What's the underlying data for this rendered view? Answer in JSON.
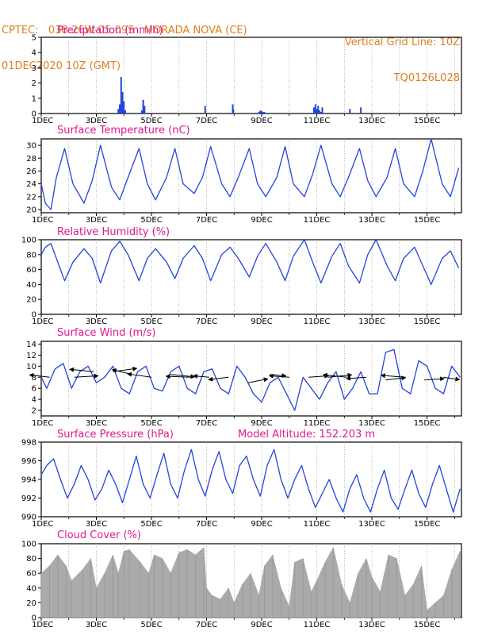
{
  "header": {
    "line1_left": "CPTEC:   038:26W-05:09S   MORADA NOVA (CE)",
    "line2_left": "01DEC2020 10Z (GMT)",
    "line1_right": "Vertical Grid Line: 10Z",
    "line2_right": "TQ0126L028"
  },
  "model_altitude": "Model Altitude: 152.203 m",
  "colors": {
    "series": "#2244dd",
    "cloud": "#aaaaaa",
    "title": "#e0198f",
    "header": "#e07f20"
  },
  "x_tick_labels": [
    "1DEC",
    "3DEC",
    "5DEC",
    "7DEC",
    "9DEC",
    "11DEC",
    "13DEC",
    "15DEC"
  ],
  "chart_data": [
    {
      "type": "bar",
      "title": "Precipitation (mm/h)",
      "x_unit": "days since 01DEC2020 10Z",
      "ylim": [
        0,
        5
      ],
      "yticks": [
        0,
        1,
        2,
        3,
        4,
        5
      ],
      "x": [
        2.8,
        2.85,
        2.9,
        2.95,
        3.0,
        3.05,
        3.65,
        3.7,
        3.75,
        5.95,
        6.95,
        6.97,
        7.9,
        7.95,
        8.0,
        8.05,
        8.1,
        9.9,
        9.95,
        10.0,
        10.05,
        10.1,
        10.15,
        10.2,
        11.2,
        11.6
      ],
      "values": [
        0.3,
        0.6,
        2.4,
        1.4,
        0.8,
        0.2,
        0.2,
        0.9,
        0.5,
        0.5,
        0.6,
        0.3,
        0.1,
        0.2,
        0.15,
        0.1,
        0.1,
        0.4,
        0.6,
        0.3,
        0.5,
        0.2,
        0.1,
        0.4,
        0.3,
        0.4
      ]
    },
    {
      "type": "line",
      "title": "Surface Temperature (nC)",
      "ylim": [
        19.5,
        31
      ],
      "yticks": [
        20,
        22,
        24,
        26,
        28,
        30
      ],
      "x": [
        0,
        0.15,
        0.35,
        0.55,
        0.85,
        1.15,
        1.55,
        1.85,
        2.15,
        2.55,
        2.85,
        3.15,
        3.55,
        3.85,
        4.15,
        4.55,
        4.85,
        5.15,
        5.55,
        5.85,
        6.15,
        6.55,
        6.85,
        7.15,
        7.55,
        7.85,
        8.15,
        8.55,
        8.85,
        9.15,
        9.55,
        9.85,
        10.15,
        10.55,
        10.85,
        11.15,
        11.55,
        11.85,
        12.15,
        12.55,
        12.85,
        13.15,
        13.55,
        13.85,
        14.15,
        14.55,
        14.85,
        15.15
      ],
      "values": [
        24,
        21,
        20,
        25,
        29.5,
        24,
        21,
        24.5,
        30,
        23.5,
        21.5,
        25,
        29.5,
        24,
        21.5,
        25,
        29.5,
        24,
        22.5,
        25,
        29.8,
        24,
        22,
        25,
        29.5,
        24,
        22,
        25,
        29.8,
        24,
        22,
        25.5,
        30,
        24,
        22,
        25,
        29.5,
        24.5,
        22,
        25,
        29.5,
        24,
        22,
        26,
        31,
        24,
        22,
        26.5
      ]
    },
    {
      "type": "line",
      "title": "Relative Humidity (%)",
      "ylim": [
        0,
        100
      ],
      "yticks": [
        0,
        20,
        40,
        60,
        80,
        100
      ],
      "x": [
        0,
        0.15,
        0.35,
        0.55,
        0.85,
        1.15,
        1.55,
        1.85,
        2.15,
        2.55,
        2.85,
        3.15,
        3.55,
        3.85,
        4.15,
        4.55,
        4.85,
        5.15,
        5.55,
        5.85,
        6.15,
        6.55,
        6.85,
        7.15,
        7.55,
        7.85,
        8.15,
        8.55,
        8.85,
        9.15,
        9.55,
        9.85,
        10.15,
        10.55,
        10.85,
        11.15,
        11.55,
        11.85,
        12.15,
        12.55,
        12.85,
        13.15,
        13.55,
        13.85,
        14.15,
        14.55,
        14.85,
        15.15
      ],
      "values": [
        80,
        90,
        95,
        75,
        45,
        70,
        88,
        75,
        42,
        85,
        98,
        80,
        45,
        75,
        88,
        70,
        48,
        75,
        92,
        75,
        45,
        80,
        90,
        75,
        50,
        78,
        95,
        70,
        45,
        78,
        100,
        70,
        42,
        78,
        95,
        65,
        42,
        80,
        100,
        65,
        45,
        75,
        90,
        65,
        40,
        75,
        85,
        62
      ]
    },
    {
      "type": "line",
      "title": "Surface Wind (m/s)",
      "ylim": [
        1,
        14.5
      ],
      "yticks": [
        2,
        4,
        6,
        8,
        10,
        12,
        14
      ],
      "x": [
        0,
        0.2,
        0.5,
        0.8,
        1.1,
        1.4,
        1.7,
        2.0,
        2.3,
        2.6,
        2.9,
        3.2,
        3.5,
        3.8,
        4.1,
        4.4,
        4.7,
        5.0,
        5.3,
        5.6,
        5.9,
        6.2,
        6.5,
        6.8,
        7.1,
        7.4,
        7.7,
        8.0,
        8.3,
        8.6,
        8.9,
        9.2,
        9.5,
        9.8,
        10.1,
        10.4,
        10.7,
        11.0,
        11.3,
        11.6,
        11.9,
        12.2,
        12.5,
        12.8,
        13.1,
        13.4,
        13.7,
        14.0,
        14.3,
        14.6,
        14.9,
        15.2
      ],
      "values": [
        8,
        6,
        9.5,
        10.5,
        6,
        9,
        10,
        7,
        8,
        10,
        6,
        5,
        9,
        10,
        6,
        5.5,
        9,
        10,
        6,
        5,
        9,
        9.5,
        6,
        5,
        10,
        8,
        5,
        3.5,
        7,
        8,
        5,
        2,
        8,
        6,
        4,
        7,
        9,
        4,
        6,
        9,
        5,
        5,
        12.5,
        13,
        6,
        5,
        11,
        10,
        6,
        5,
        10,
        8
      ]
    },
    {
      "type": "line",
      "title": "Surface Pressure (hPa)",
      "ylim": [
        990,
        998
      ],
      "yticks": [
        990,
        992,
        994,
        996,
        998
      ],
      "x": [
        0,
        0.2,
        0.45,
        0.7,
        0.95,
        1.2,
        1.45,
        1.7,
        1.95,
        2.2,
        2.45,
        2.7,
        2.95,
        3.2,
        3.45,
        3.7,
        3.95,
        4.2,
        4.45,
        4.7,
        4.95,
        5.2,
        5.45,
        5.7,
        5.95,
        6.2,
        6.45,
        6.7,
        6.95,
        7.2,
        7.45,
        7.7,
        7.95,
        8.2,
        8.45,
        8.7,
        8.95,
        9.2,
        9.45,
        9.7,
        9.95,
        10.2,
        10.45,
        10.7,
        10.95,
        11.2,
        11.45,
        11.7,
        11.95,
        12.2,
        12.45,
        12.7,
        12.95,
        13.2,
        13.45,
        13.7,
        13.95,
        14.2,
        14.45,
        14.7,
        14.95,
        15.2
      ],
      "values": [
        994.5,
        995.5,
        996.2,
        994,
        992,
        993.5,
        995.5,
        994,
        991.8,
        993,
        995,
        993.5,
        991.5,
        994,
        996.5,
        993.5,
        992,
        994.5,
        996.8,
        993.5,
        992,
        995,
        997.2,
        994,
        992.2,
        995,
        997,
        994,
        992.5,
        995.5,
        996.5,
        994,
        992.2,
        995.5,
        997.2,
        994,
        992,
        994,
        995.5,
        993,
        991,
        992.5,
        994,
        992,
        990.5,
        993,
        994.5,
        992,
        990.5,
        993,
        995,
        992,
        990.8,
        993,
        995,
        992.5,
        991,
        993.5,
        995.5,
        993,
        990.5,
        993
      ]
    },
    {
      "type": "area",
      "title": "Cloud Cover (%)",
      "ylim": [
        0,
        100
      ],
      "yticks": [
        0,
        20,
        40,
        60,
        80,
        100
      ],
      "x": [
        0,
        0.3,
        0.6,
        0.9,
        1.1,
        1.5,
        1.8,
        2.0,
        2.3,
        2.6,
        2.8,
        3.0,
        3.2,
        3.6,
        3.9,
        4.1,
        4.4,
        4.7,
        5.0,
        5.3,
        5.6,
        5.9,
        6.0,
        6.2,
        6.5,
        6.8,
        7.0,
        7.3,
        7.6,
        7.9,
        8.1,
        8.4,
        8.7,
        9.0,
        9.2,
        9.5,
        9.8,
        10.0,
        10.3,
        10.6,
        10.9,
        11.2,
        11.5,
        11.8,
        12.0,
        12.3,
        12.6,
        12.9,
        13.2,
        13.5,
        13.8,
        14.0,
        14.3,
        14.6,
        14.9,
        15.2
      ],
      "values": [
        60,
        70,
        85,
        70,
        50,
        65,
        80,
        40,
        60,
        85,
        60,
        90,
        92,
        75,
        60,
        85,
        80,
        60,
        88,
        92,
        85,
        95,
        40,
        30,
        25,
        40,
        20,
        45,
        60,
        30,
        70,
        85,
        40,
        15,
        75,
        80,
        35,
        50,
        75,
        95,
        45,
        20,
        60,
        80,
        55,
        35,
        85,
        80,
        30,
        45,
        70,
        10,
        20,
        30,
        65,
        90
      ]
    },
    {
      "type": "vectors",
      "title": "Surface Wind (m/s)",
      "x": [
        0.3,
        1.2,
        1.9,
        2.6,
        3.3,
        4.0,
        4.7,
        5.4,
        6.1,
        6.8,
        7.5,
        8.3,
        9.0,
        9.7,
        10.4,
        11.1,
        11.8,
        12.5,
        13.2,
        13.9,
        14.6
      ],
      "values": [
        8,
        8,
        9,
        9,
        8.5,
        8,
        8.5,
        8,
        8,
        8,
        7,
        8.5,
        8,
        8,
        8,
        8,
        8,
        7.5,
        8,
        7.5,
        8
      ],
      "u": [
        -2.5,
        3,
        -3,
        3,
        -2.5,
        -3,
        3,
        -3,
        -2,
        -2.5,
        2.5,
        2,
        -2.5,
        2.5,
        3,
        -3,
        -2.5,
        2.5,
        -3,
        2.5,
        2
      ],
      "v": [
        0.5,
        0.3,
        0.5,
        0.7,
        1,
        0.7,
        -0.5,
        0.2,
        0.3,
        -0.5,
        0.8,
        -0.3,
        0.3,
        0.3,
        0.5,
        0.5,
        -0.3,
        0.5,
        0.4,
        0.3,
        -0.5
      ]
    }
  ]
}
